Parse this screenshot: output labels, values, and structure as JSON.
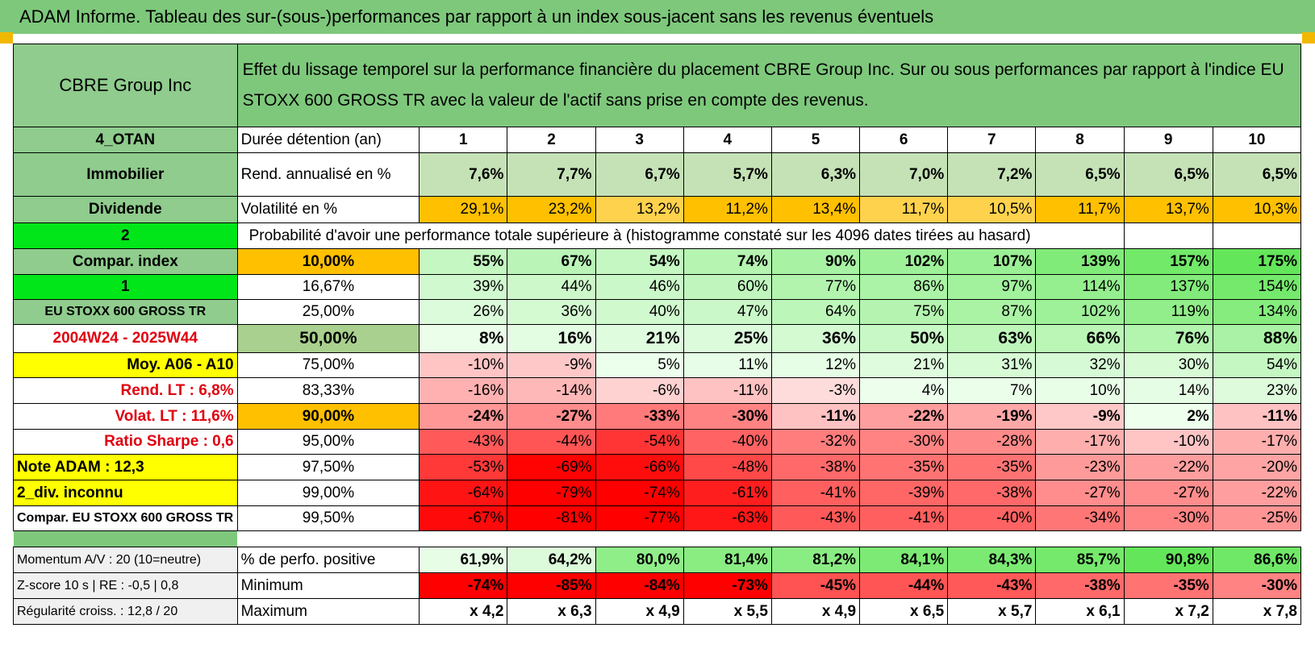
{
  "title": "ADAM Informe. Tableau des sur-(sous-)performances par rapport à un index sous-jacent sans les revenus éventuels",
  "header": {
    "asset": "CBRE Group Inc",
    "description": "Effet du lissage temporel sur la performance financière du placement CBRE Group Inc. Sur ou sous performances par rapport à l'indice EU STOXX 600 GROSS TR avec la valeur de l'actif sans prise en compte des revenus."
  },
  "side": {
    "otan": "4_OTAN",
    "sector": "Immobilier",
    "dividend": "Dividende",
    "two": "2",
    "compar_index": "Compar. index",
    "one": "1",
    "index_name": "EU STOXX 600 GROSS TR",
    "period": "2004W24 - 2025W44",
    "moy": "Moy. A06 - A10",
    "rend_lt": "Rend. LT :    6,8%",
    "volat_lt": "Volat. LT :    11,6%",
    "sharpe": "Ratio Sharpe :    0,6",
    "note": "Note ADAM : 12,3",
    "div": "2_div. inconnu",
    "compar_full": "Compar. EU STOXX 600 GROSS TR"
  },
  "rows": {
    "duree_label": "Durée détention (an)",
    "years": [
      "1",
      "2",
      "3",
      "4",
      "5",
      "6",
      "7",
      "8",
      "9",
      "10"
    ],
    "rend_label": "Rend. annualisé en %",
    "rend": [
      "7,6%",
      "7,7%",
      "6,7%",
      "5,7%",
      "6,3%",
      "7,0%",
      "7,2%",
      "6,5%",
      "6,5%",
      "6,5%"
    ],
    "vol_label": "Volatilité en %",
    "vol": [
      "29,1%",
      "23,2%",
      "13,2%",
      "11,2%",
      "13,4%",
      "11,7%",
      "10,5%",
      "11,7%",
      "13,7%",
      "10,3%"
    ],
    "prob_label": "Probabilité d'avoir une performance totale supérieure à (histogramme constaté sur les 4096 dates tirées au hasard)"
  },
  "prob_rows": [
    {
      "pct": "10,00%",
      "values": [
        "55%",
        "67%",
        "54%",
        "74%",
        "90%",
        "102%",
        "107%",
        "139%",
        "157%",
        "175%"
      ]
    },
    {
      "pct": "16,67%",
      "values": [
        "39%",
        "44%",
        "46%",
        "60%",
        "77%",
        "86%",
        "97%",
        "114%",
        "137%",
        "154%"
      ]
    },
    {
      "pct": "25,00%",
      "values": [
        "26%",
        "36%",
        "40%",
        "47%",
        "64%",
        "75%",
        "87%",
        "102%",
        "119%",
        "134%"
      ]
    },
    {
      "pct": "50,00%",
      "values": [
        "8%",
        "16%",
        "21%",
        "25%",
        "36%",
        "50%",
        "63%",
        "66%",
        "76%",
        "88%"
      ]
    },
    {
      "pct": "75,00%",
      "values": [
        "-10%",
        "-9%",
        "5%",
        "11%",
        "12%",
        "21%",
        "31%",
        "32%",
        "30%",
        "54%"
      ]
    },
    {
      "pct": "83,33%",
      "values": [
        "-16%",
        "-14%",
        "-6%",
        "-11%",
        "-3%",
        "4%",
        "7%",
        "10%",
        "14%",
        "23%"
      ]
    },
    {
      "pct": "90,00%",
      "values": [
        "-24%",
        "-27%",
        "-33%",
        "-30%",
        "-11%",
        "-22%",
        "-19%",
        "-9%",
        "2%",
        "-11%"
      ]
    },
    {
      "pct": "95,00%",
      "values": [
        "-43%",
        "-44%",
        "-54%",
        "-40%",
        "-32%",
        "-30%",
        "-28%",
        "-17%",
        "-10%",
        "-17%"
      ]
    },
    {
      "pct": "97,50%",
      "values": [
        "-53%",
        "-69%",
        "-66%",
        "-48%",
        "-38%",
        "-35%",
        "-35%",
        "-23%",
        "-22%",
        "-20%"
      ]
    },
    {
      "pct": "99,00%",
      "values": [
        "-64%",
        "-79%",
        "-74%",
        "-61%",
        "-41%",
        "-39%",
        "-38%",
        "-27%",
        "-27%",
        "-22%"
      ]
    },
    {
      "pct": "99,50%",
      "values": [
        "-67%",
        "-81%",
        "-77%",
        "-63%",
        "-43%",
        "-41%",
        "-40%",
        "-34%",
        "-30%",
        "-25%"
      ]
    }
  ],
  "footer": {
    "momentum": "Momentum A/V : 20 (10=neutre)",
    "zscore": "Z-score 10 s | RE : -0,5 | 0,8",
    "regularite": "Régularité croiss. : 12,8 / 20",
    "positive_label": "% de perfo. positive",
    "positive": [
      "61,9%",
      "64,2%",
      "80,0%",
      "81,4%",
      "81,2%",
      "84,1%",
      "84,3%",
      "85,7%",
      "90,8%",
      "86,6%"
    ],
    "min_label": "Minimum",
    "min": [
      "-74%",
      "-85%",
      "-84%",
      "-73%",
      "-45%",
      "-44%",
      "-43%",
      "-38%",
      "-35%",
      "-30%"
    ],
    "max_label": "Maximum",
    "max": [
      "x 4,2",
      "x 6,3",
      "x 4,9",
      "x 5,5",
      "x 4,9",
      "x 6,5",
      "x 5,7",
      "x 6,1",
      "x 7,2",
      "x 7,8"
    ]
  },
  "colors": {
    "banner": "#7ec87c",
    "label_green": "#8fcc8d",
    "bright_green": "#00e619",
    "orange": "#ffc000",
    "yellow": "#ffff00",
    "red_text": "#e0000f"
  }
}
